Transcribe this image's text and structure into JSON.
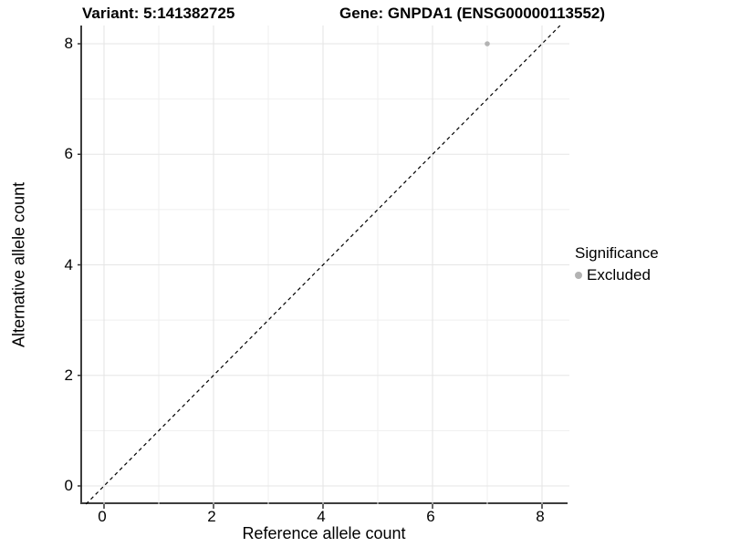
{
  "chart_data": {
    "type": "scatter",
    "title_left": "Variant: 5:141382725",
    "title_right": "Gene: GNPDA1 (ENSG00000113552)",
    "xlabel": "Reference allele count",
    "ylabel": "Alternative allele count",
    "xlim": [
      -0.4,
      8.5
    ],
    "ylim": [
      -0.33,
      8.33
    ],
    "x_ticks": [
      0,
      2,
      4,
      6,
      8
    ],
    "y_ticks": [
      0,
      2,
      4,
      6,
      8
    ],
    "x_minor_ticks": [
      1,
      3,
      5,
      7
    ],
    "y_minor_ticks": [
      1,
      3,
      5,
      7
    ],
    "grid": "on",
    "reference_line": {
      "kind": "identity y=x",
      "style": "dashed",
      "color": "#000000"
    },
    "series": [
      {
        "name": "Excluded",
        "color": "#b3b3b3",
        "points": [
          {
            "x": 7,
            "y": 8
          }
        ]
      }
    ],
    "legend": {
      "title": "Significance",
      "position": "right",
      "items": [
        {
          "label": "Excluded",
          "color": "#b3b3b3"
        }
      ]
    },
    "colors": {
      "background": "#ffffff",
      "grid_major": "#e5e5e5",
      "grid_minor": "#efefef",
      "axis_line": "#3d3d3d",
      "tick_mark": "#333333",
      "point": "#b3b3b3"
    }
  }
}
